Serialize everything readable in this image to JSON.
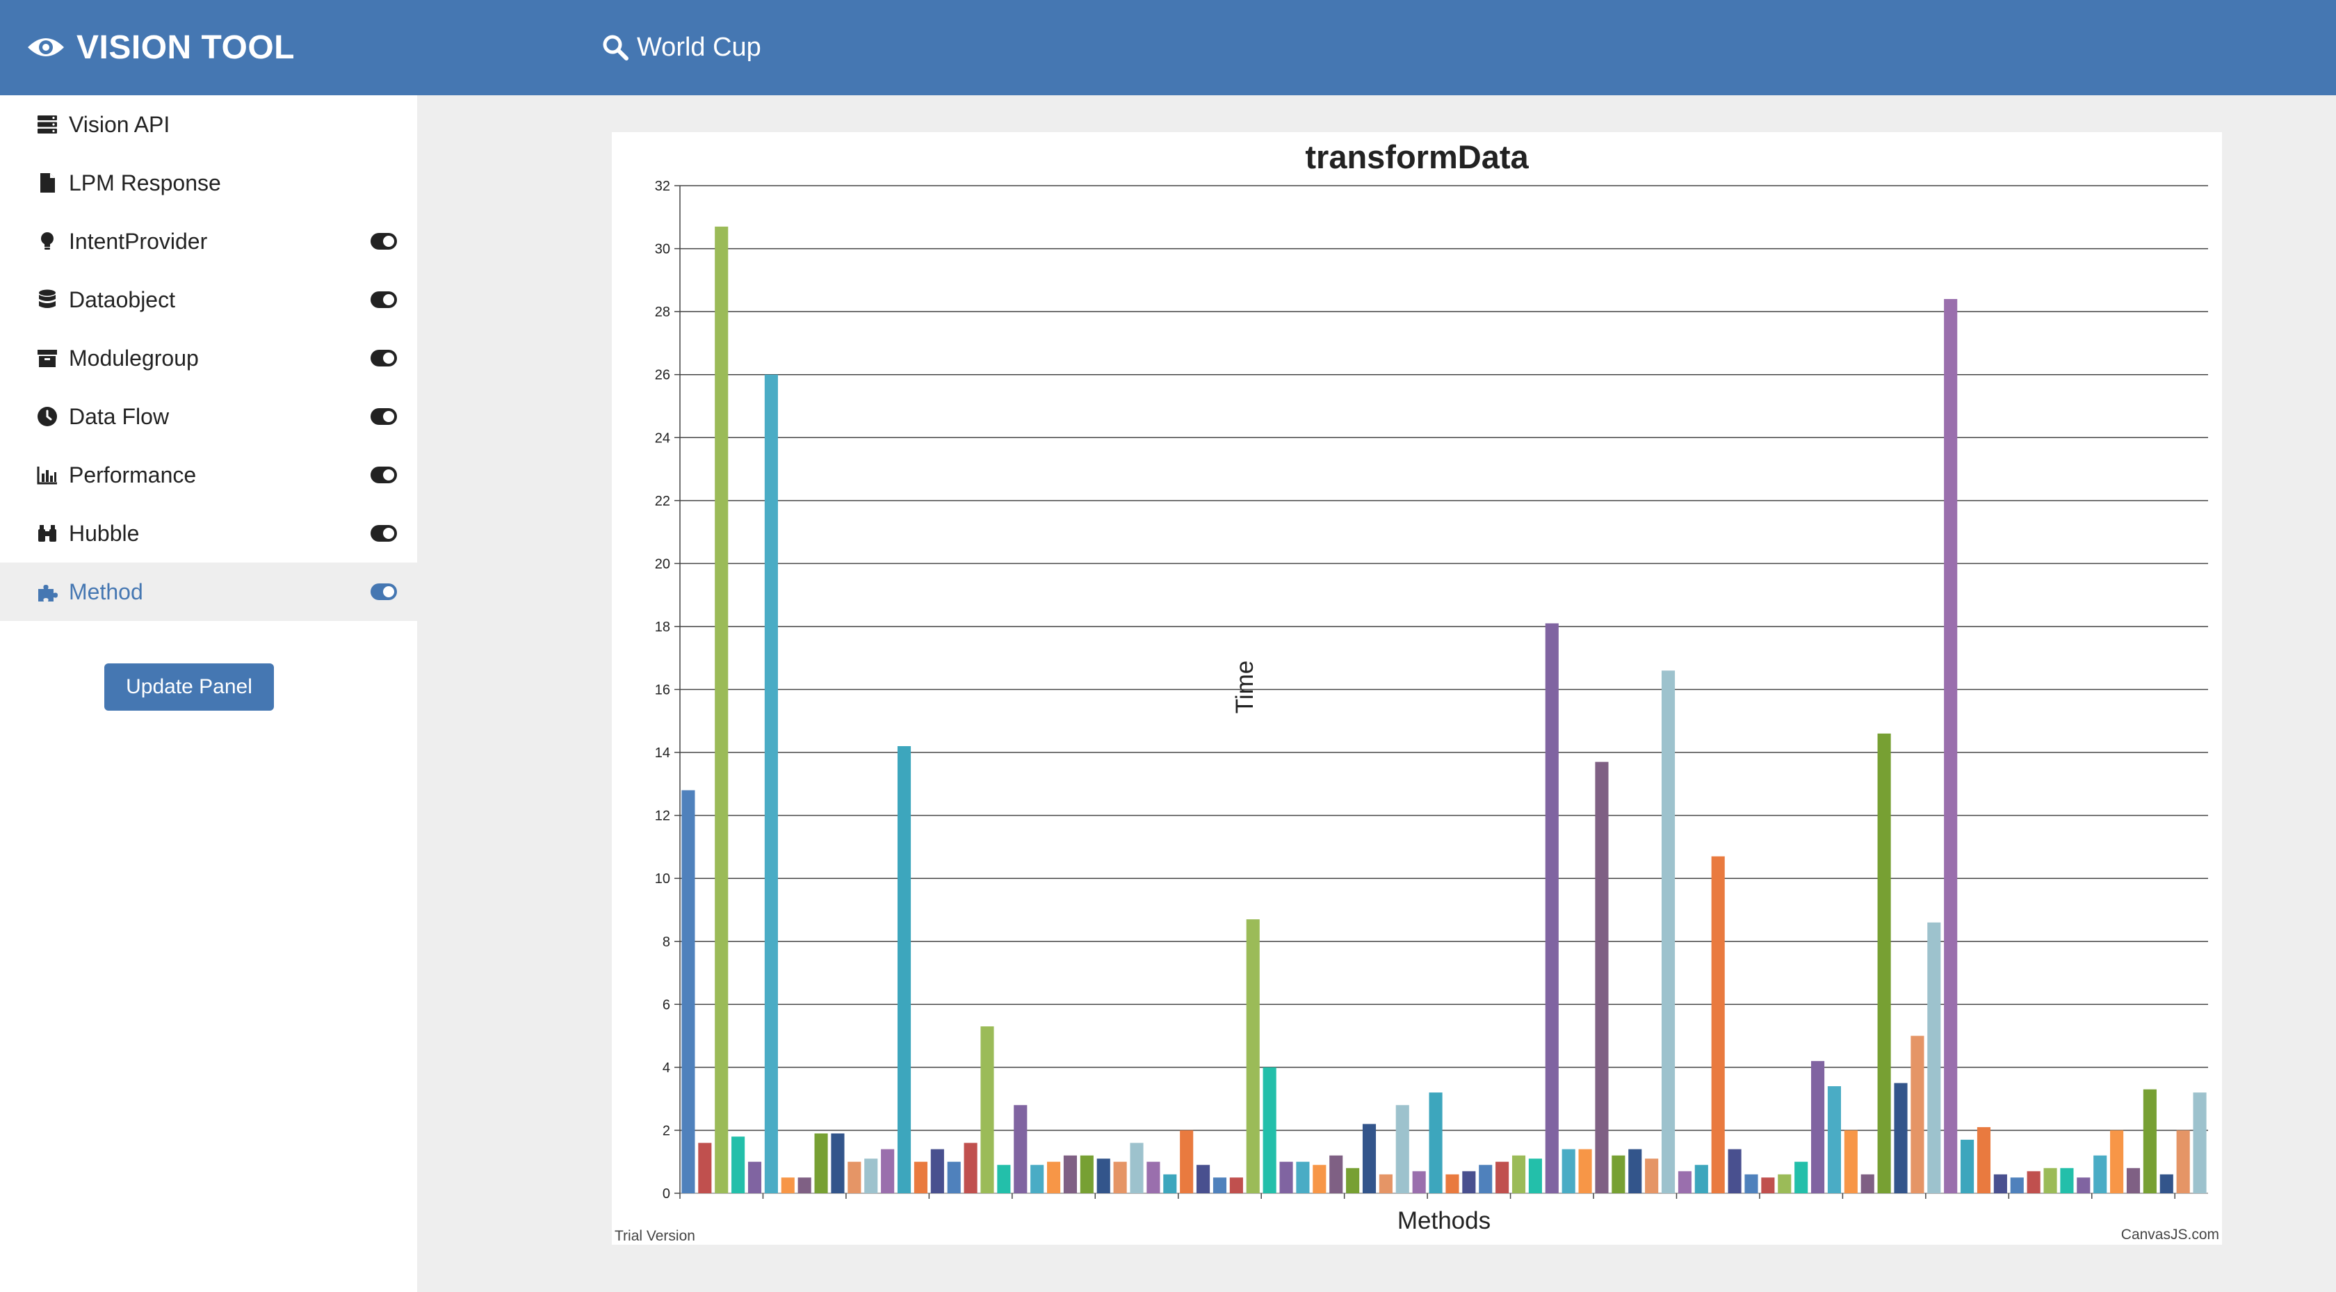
{
  "app": {
    "brand": "VISION TOOL",
    "search_value": "World Cup"
  },
  "colors": {
    "header": "#4577b2",
    "accent": "#4577b2",
    "active_bg": "#eeeeee"
  },
  "sidebar": {
    "items": [
      {
        "label": "Vision API",
        "icon": "server-icon",
        "toggle": false,
        "active": false
      },
      {
        "label": "LPM Response",
        "icon": "file-icon",
        "toggle": false,
        "active": false
      },
      {
        "label": "IntentProvider",
        "icon": "lightbulb-icon",
        "toggle": true,
        "active": false
      },
      {
        "label": "Dataobject",
        "icon": "database-icon",
        "toggle": true,
        "active": false
      },
      {
        "label": "Modulegroup",
        "icon": "archive-icon",
        "toggle": true,
        "active": false
      },
      {
        "label": "Data Flow",
        "icon": "clock-icon",
        "toggle": true,
        "active": false
      },
      {
        "label": "Performance",
        "icon": "bar-chart-icon",
        "toggle": true,
        "active": false
      },
      {
        "label": "Hubble",
        "icon": "binoculars-icon",
        "toggle": true,
        "active": false
      },
      {
        "label": "Method",
        "icon": "puzzle-icon",
        "toggle": true,
        "active": true
      }
    ],
    "update_button": "Update Panel"
  },
  "chart_data": {
    "type": "bar",
    "title": "transformData",
    "xlabel": "Methods",
    "ylabel": "Time",
    "ylim": [
      0,
      32
    ],
    "ytick_step": 2,
    "grid": true,
    "legend": "none",
    "credit_left": "Trial Version",
    "credit_right": "CanvasJS.com",
    "colors": [
      "#4f81bc",
      "#c0504e",
      "#9bbb58",
      "#23bfaa",
      "#8064a1",
      "#4aacc5",
      "#f79647",
      "#7f6084",
      "#77a033",
      "#33558b",
      "#e59566",
      "#9dc2cd",
      "#9a6fad",
      "#3da6bd",
      "#e97a3f",
      "#49508f"
    ],
    "values": [
      12.8,
      1.6,
      30.7,
      1.8,
      1.0,
      26.0,
      0.5,
      0.5,
      1.9,
      1.9,
      1.0,
      1.1,
      1.4,
      14.2,
      1.0,
      1.4,
      1.0,
      1.6,
      5.3,
      0.9,
      2.8,
      0.9,
      1.0,
      1.2,
      1.2,
      1.1,
      1.0,
      1.6,
      1.0,
      0.6,
      2.0,
      0.9,
      0.5,
      0.5,
      8.7,
      4.0,
      1.0,
      1.0,
      0.9,
      1.2,
      0.8,
      2.2,
      0.6,
      2.8,
      0.7,
      3.2,
      0.6,
      0.7,
      0.9,
      1.0,
      1.2,
      1.1,
      18.1,
      1.4,
      1.4,
      13.7,
      1.2,
      1.4,
      1.1,
      16.6,
      0.7,
      0.9,
      10.7,
      1.4,
      0.6,
      0.5,
      0.6,
      1.0,
      4.2,
      3.4,
      2.0,
      0.6,
      14.6,
      3.5,
      5.0,
      8.6,
      28.4,
      1.7,
      2.1,
      0.6,
      0.5,
      0.7,
      0.8,
      0.8,
      0.5,
      1.2,
      2.0,
      0.8,
      3.3,
      0.6,
      2.0,
      3.2
    ]
  }
}
